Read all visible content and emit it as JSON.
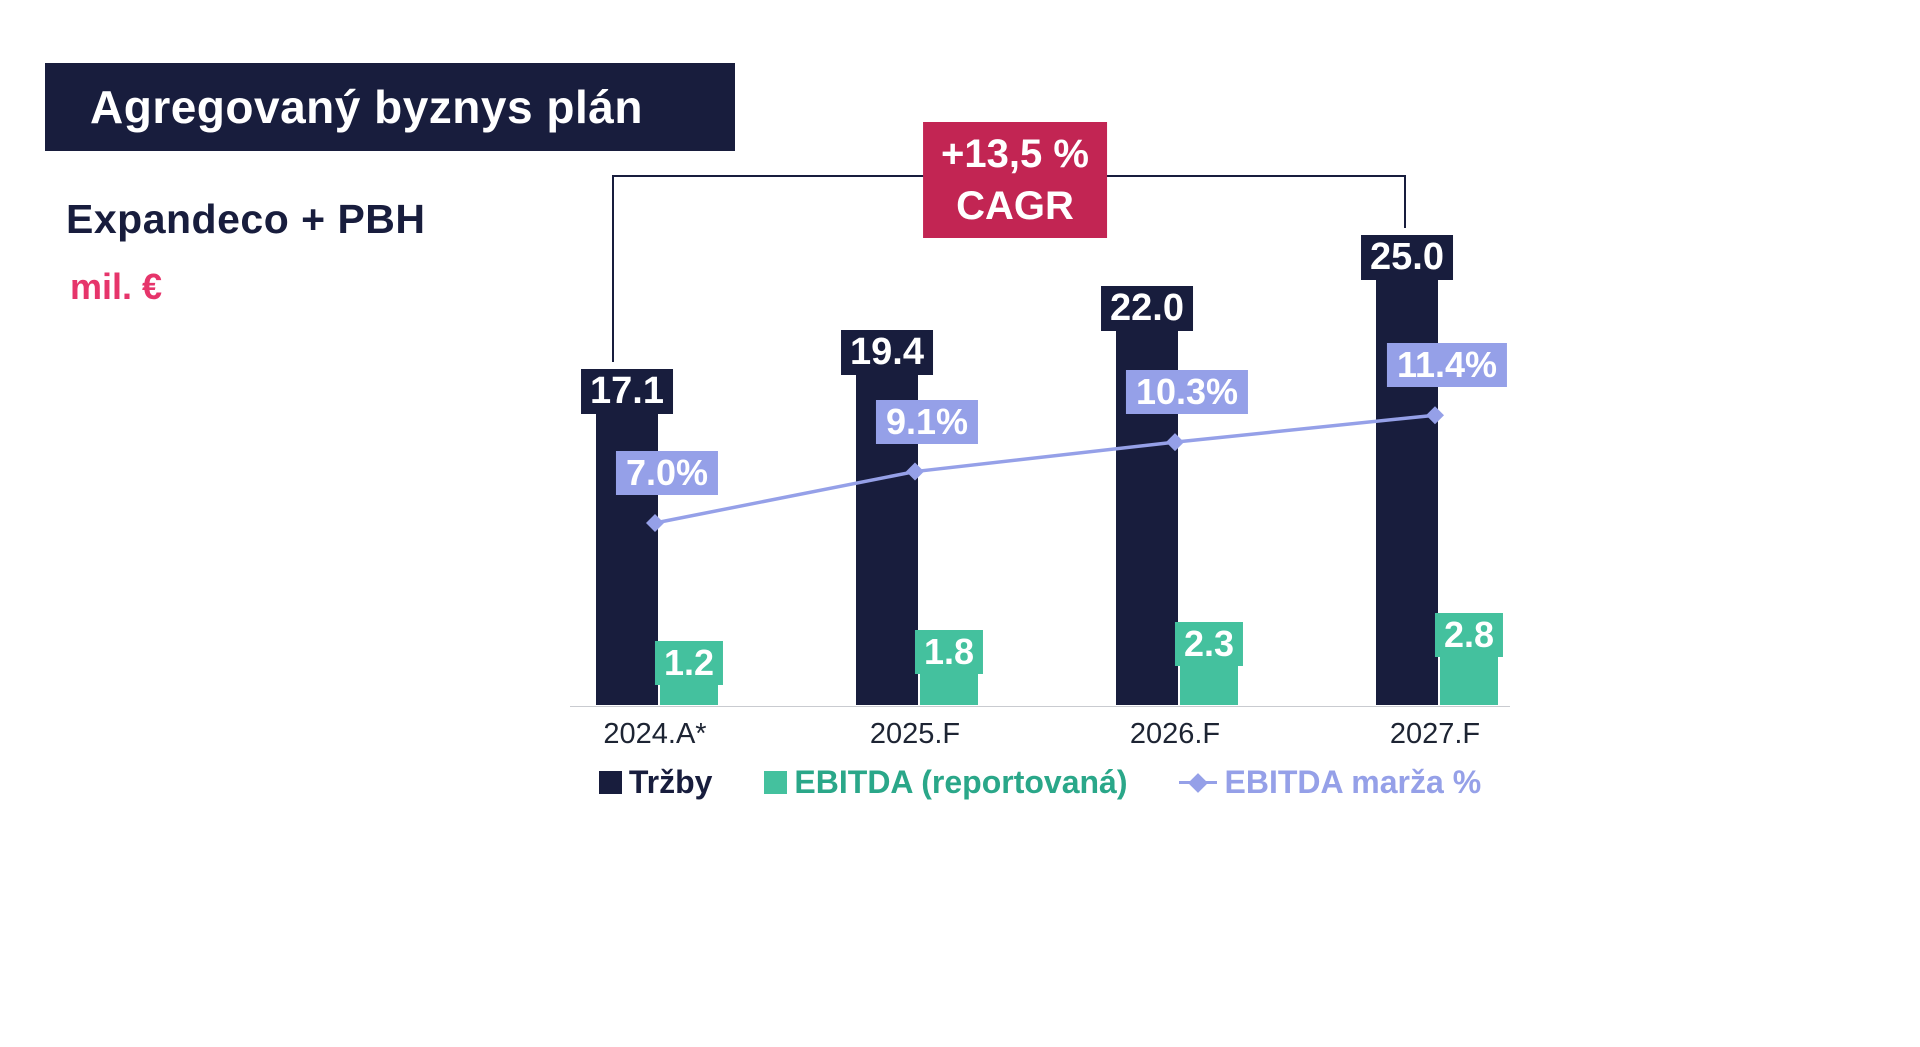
{
  "header": {
    "title": "Agregovaný byznys plán",
    "subtitle": "Expandeco + PBH",
    "unit": "mil. €"
  },
  "cagr": {
    "line1": "+13,5 %",
    "line2": "CAGR"
  },
  "chart_data": {
    "type": "bar",
    "title": "Agregovaný byznys plán – Expandeco + PBH",
    "unit": "mil. €",
    "categories": [
      "2024.A*",
      "2025.F",
      "2026.F",
      "2027.F"
    ],
    "series": [
      {
        "name": "Tržby",
        "type": "bar",
        "color": "#181d3d",
        "values": [
          17.1,
          19.4,
          22.0,
          25.0
        ]
      },
      {
        "name": "EBITDA (reportovaná)",
        "type": "bar",
        "color": "#44c19e",
        "values": [
          1.2,
          1.8,
          2.3,
          2.8
        ]
      },
      {
        "name": "EBITDA marža %",
        "type": "line",
        "color": "#95a0e8",
        "values": [
          7.0,
          9.1,
          10.3,
          11.4
        ],
        "labels": [
          "7.0%",
          "9.1%",
          "10.3%",
          "11.4%"
        ]
      }
    ],
    "annotation": "+13,5 % CAGR",
    "ylim": [
      0,
      25
    ],
    "grid": false,
    "legend_position": "bottom"
  },
  "legend": [
    {
      "label": "Tržby",
      "color": "#181d3d",
      "marker": "square"
    },
    {
      "label": "EBITDA (reportovaná)",
      "color": "#2aa789",
      "marker": "square",
      "marker_color": "#44c19e"
    },
    {
      "label": "EBITDA marža %",
      "color": "#95a0e8",
      "marker": "diamond",
      "marker_color": "#95a0e8"
    }
  ],
  "colors": {
    "navy": "#181d3d",
    "green": "#44c19e",
    "purple": "#95a0e8",
    "crimson": "#c22553",
    "pink": "#e6356b",
    "axis": "#c9cbd0"
  }
}
